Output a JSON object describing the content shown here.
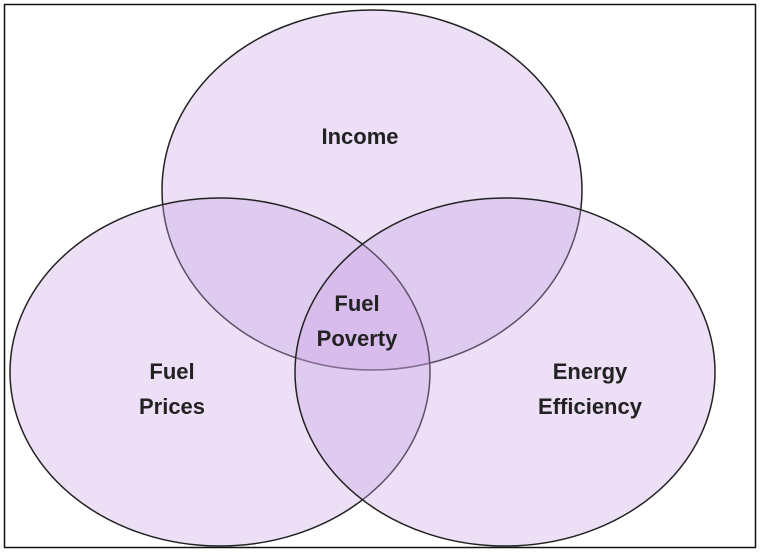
{
  "sets": [
    {
      "label": [
        "Income"
      ]
    },
    {
      "label": [
        "Fuel",
        "Prices"
      ]
    },
    {
      "label": [
        "Energy",
        "Efficiency"
      ]
    }
  ],
  "intersection": {
    "label": [
      "Fuel",
      "Poverty"
    ]
  }
}
